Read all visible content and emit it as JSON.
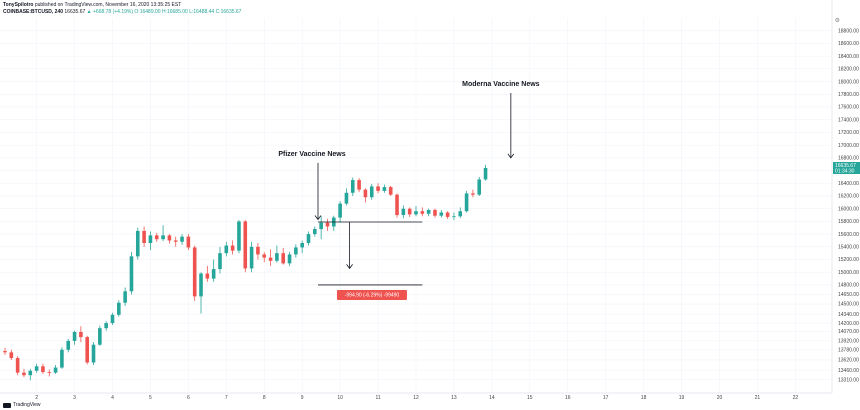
{
  "header": {
    "author": "TonySpilotro",
    "published": "published on TradingView.com, November 16, 2020 13:35:25 EST",
    "symbol": "COINBASE:BTCUSD, 240",
    "price": "16635.67",
    "change": "▲ +668.78 (+4.19%)",
    "ohlc": "O:16489.00  H:16685.00  L:16488.44  C:16635.67"
  },
  "annotations": {
    "pfizer": "Pfizer Vaccine News",
    "moderna": "Moderna Vaccine News"
  },
  "measurement": {
    "label": "-994.90 (-6.29%) -99490",
    "color": "#ef5350"
  },
  "price_tags": {
    "current": "16635.67",
    "countdown": "01:34:30"
  },
  "logo": {
    "text": "TradingView"
  },
  "colors": {
    "up": "#26a69a",
    "down": "#ef5350",
    "grid": "#f0f3fa",
    "current": "#26a69a"
  },
  "chart_data": {
    "type": "candlestick",
    "title": "",
    "xlabel": "",
    "ylabel": "",
    "ylim": [
      13100,
      19000
    ],
    "y_ticks": [
      13310,
      13460,
      13620,
      13780,
      13920,
      14070,
      14200,
      14340,
      14500,
      14650,
      14800,
      15000,
      15200,
      15400,
      15600,
      15800,
      16000,
      16200,
      16400,
      16600,
      16800,
      17000,
      17200,
      17400,
      17600,
      17800,
      18000,
      18200,
      18400,
      18600,
      18800
    ],
    "x_ticks": [
      {
        "label": "2",
        "i": 5
      },
      {
        "label": "3",
        "i": 11
      },
      {
        "label": "4",
        "i": 17
      },
      {
        "label": "5",
        "i": 23
      },
      {
        "label": "6",
        "i": 29
      },
      {
        "label": "7",
        "i": 35
      },
      {
        "label": "8",
        "i": 41
      },
      {
        "label": "9",
        "i": 47
      },
      {
        "label": "10",
        "i": 53
      },
      {
        "label": "11",
        "i": 59
      },
      {
        "label": "12",
        "i": 65
      },
      {
        "label": "13",
        "i": 71
      },
      {
        "label": "14",
        "i": 77
      },
      {
        "label": "15",
        "i": 83
      },
      {
        "label": "16",
        "i": 89
      },
      {
        "label": "17",
        "i": 95
      },
      {
        "label": "18",
        "i": 101
      },
      {
        "label": "19",
        "i": 107
      },
      {
        "label": "20",
        "i": 113
      },
      {
        "label": "21",
        "i": 119
      },
      {
        "label": "22",
        "i": 125
      }
    ],
    "candles": [
      [
        13760,
        13810,
        13700,
        13740
      ],
      [
        13740,
        13780,
        13620,
        13650
      ],
      [
        13650,
        13680,
        13380,
        13420
      ],
      [
        13420,
        13480,
        13350,
        13380
      ],
      [
        13380,
        13480,
        13300,
        13450
      ],
      [
        13450,
        13560,
        13420,
        13520
      ],
      [
        13520,
        13560,
        13400,
        13430
      ],
      [
        13430,
        13470,
        13360,
        13420
      ],
      [
        13420,
        13540,
        13400,
        13500
      ],
      [
        13500,
        13820,
        13480,
        13780
      ],
      [
        13780,
        13950,
        13740,
        13920
      ],
      [
        13920,
        14080,
        13860,
        14060
      ],
      [
        14060,
        14150,
        13900,
        13980
      ],
      [
        13980,
        14000,
        13550,
        13580
      ],
      [
        13580,
        13900,
        13540,
        13860
      ],
      [
        13860,
        14160,
        13840,
        14120
      ],
      [
        14120,
        14230,
        14080,
        14200
      ],
      [
        14200,
        14360,
        14170,
        14330
      ],
      [
        14330,
        14560,
        14300,
        14520
      ],
      [
        14520,
        14760,
        14470,
        14700
      ],
      [
        14700,
        15320,
        14650,
        15250
      ],
      [
        15250,
        15700,
        15200,
        15650
      ],
      [
        15650,
        15720,
        15400,
        15460
      ],
      [
        15460,
        15640,
        15350,
        15580
      ],
      [
        15580,
        15620,
        15480,
        15520
      ],
      [
        15520,
        15740,
        15490,
        15580
      ],
      [
        15580,
        15600,
        15450,
        15500
      ],
      [
        15500,
        15560,
        15400,
        15480
      ],
      [
        15480,
        15600,
        15430,
        15560
      ],
      [
        15560,
        15600,
        15350,
        15390
      ],
      [
        15390,
        15420,
        14550,
        14620
      ],
      [
        14620,
        15000,
        14350,
        14980
      ],
      [
        14980,
        15100,
        14850,
        14900
      ],
      [
        14900,
        15200,
        14850,
        15050
      ],
      [
        15050,
        15400,
        14980,
        15300
      ],
      [
        15300,
        15480,
        15250,
        15420
      ],
      [
        15420,
        15500,
        15280,
        15340
      ],
      [
        15340,
        15820,
        15300,
        15800
      ],
      [
        15800,
        15820,
        15000,
        15060
      ],
      [
        15060,
        15480,
        15000,
        15400
      ],
      [
        15400,
        15460,
        15200,
        15280
      ],
      [
        15280,
        15320,
        15160,
        15230
      ],
      [
        15230,
        15360,
        15100,
        15180
      ],
      [
        15180,
        15420,
        15150,
        15300
      ],
      [
        15300,
        15380,
        15120,
        15140
      ],
      [
        15140,
        15320,
        15100,
        15280
      ],
      [
        15280,
        15440,
        15230,
        15390
      ],
      [
        15390,
        15500,
        15300,
        15460
      ],
      [
        15460,
        15640,
        15420,
        15600
      ],
      [
        15600,
        15720,
        15560,
        15680
      ],
      [
        15680,
        15880,
        15520,
        15780
      ],
      [
        15780,
        15840,
        15650,
        15720
      ],
      [
        15720,
        15890,
        15650,
        15860
      ],
      [
        15860,
        16120,
        15780,
        16080
      ],
      [
        16080,
        16320,
        16050,
        16250
      ],
      [
        16250,
        16490,
        16200,
        16450
      ],
      [
        16450,
        16480,
        16260,
        16300
      ],
      [
        16300,
        16320,
        16100,
        16180
      ],
      [
        16180,
        16390,
        16140,
        16350
      ],
      [
        16350,
        16400,
        16240,
        16280
      ],
      [
        16280,
        16380,
        16250,
        16340
      ],
      [
        16340,
        16360,
        16200,
        16220
      ],
      [
        16220,
        16240,
        15860,
        15900
      ],
      [
        15900,
        16050,
        15850,
        16000
      ],
      [
        16000,
        16020,
        15870,
        15910
      ],
      [
        15910,
        16040,
        15880,
        15960
      ],
      [
        15960,
        16020,
        15880,
        15920
      ],
      [
        15920,
        16000,
        15880,
        15980
      ],
      [
        15980,
        16000,
        15860,
        15890
      ],
      [
        15890,
        15980,
        15860,
        15940
      ],
      [
        15940,
        15960,
        15840,
        15870
      ],
      [
        15870,
        15940,
        15820,
        15880
      ],
      [
        15880,
        16020,
        15850,
        15960
      ],
      [
        15960,
        16280,
        15940,
        16240
      ],
      [
        16240,
        16300,
        16180,
        16220
      ],
      [
        16220,
        16500,
        16200,
        16460
      ],
      [
        16460,
        16690,
        16440,
        16640
      ]
    ]
  }
}
